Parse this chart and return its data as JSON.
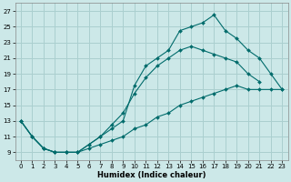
{
  "xlabel": "Humidex (Indice chaleur)",
  "bg_color": "#cce8e8",
  "grid_color": "#aacfcf",
  "line_color": "#006b6b",
  "xlim": [
    -0.5,
    23.5
  ],
  "ylim": [
    8,
    28
  ],
  "xticks": [
    0,
    1,
    2,
    3,
    4,
    5,
    6,
    7,
    8,
    9,
    10,
    11,
    12,
    13,
    14,
    15,
    16,
    17,
    18,
    19,
    20,
    21,
    22,
    23
  ],
  "yticks": [
    9,
    11,
    13,
    15,
    17,
    19,
    21,
    23,
    25,
    27
  ],
  "series1_x": [
    0,
    1,
    2,
    3,
    4,
    5,
    6,
    7,
    8,
    9,
    10,
    11,
    12,
    13,
    14,
    15,
    16,
    17,
    18,
    19,
    20,
    21,
    22,
    23
  ],
  "series1_y": [
    13,
    11,
    9.5,
    9,
    9,
    9,
    9.5,
    10,
    10.5,
    11,
    12,
    12.5,
    13.5,
    14,
    15,
    15.5,
    16,
    16.5,
    17,
    17.5,
    17,
    17,
    17,
    17
  ],
  "series2_x": [
    0,
    1,
    2,
    3,
    4,
    5,
    6,
    7,
    8,
    9,
    10,
    11,
    12,
    13,
    14,
    15,
    16,
    17,
    18,
    19,
    20,
    21,
    22,
    23
  ],
  "series2_y": [
    13,
    11,
    9.5,
    9,
    9,
    9,
    10,
    11,
    12,
    13,
    17.5,
    20,
    21,
    22,
    24.5,
    25,
    25.5,
    26.5,
    24.5,
    23.5,
    22,
    21,
    19,
    17
  ],
  "series3_x": [
    0,
    1,
    2,
    3,
    4,
    5,
    6,
    7,
    8,
    9,
    10,
    11,
    12,
    13,
    14,
    15,
    16,
    17,
    18,
    19,
    20,
    21,
    22,
    23
  ],
  "series3_y": [
    13,
    11,
    9.5,
    9,
    9,
    9,
    10,
    11,
    12.5,
    14,
    16.5,
    18.5,
    20,
    21,
    22,
    22.5,
    22,
    21.5,
    21,
    20.5,
    19,
    18,
    null,
    null
  ]
}
